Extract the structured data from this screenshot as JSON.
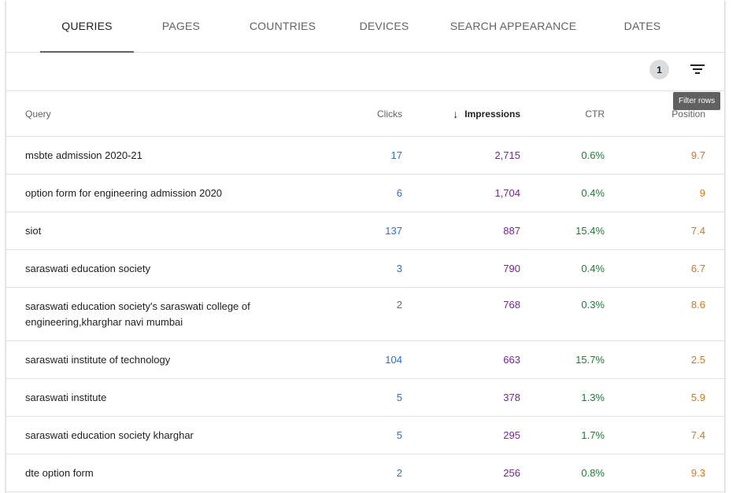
{
  "tabs": [
    {
      "label": "QUERIES",
      "active": true
    },
    {
      "label": "PAGES"
    },
    {
      "label": "COUNTRIES"
    },
    {
      "label": "DEVICES"
    },
    {
      "label": "SEARCH APPEARANCE"
    },
    {
      "label": "DATES"
    }
  ],
  "toolbar": {
    "filter_count": "1",
    "filter_icon": "filter-list-icon",
    "tooltip": "Filter rows"
  },
  "table": {
    "columns": {
      "query": "Query",
      "clicks": "Clicks",
      "impressions": "Impressions",
      "ctr": "CTR",
      "position": "Position"
    },
    "sort_icon": "arrow-down-icon",
    "colors": {
      "clicks": "#1a73e8",
      "impressions": "#7b1fa2",
      "ctr": "#188038",
      "position": "#e8710a"
    },
    "rows": [
      {
        "query": "msbte admission 2020-21",
        "clicks": "17",
        "impressions": "2,715",
        "ctr": "0.6%",
        "position": "9.7"
      },
      {
        "query": "option form for engineering admission 2020",
        "clicks": "6",
        "impressions": "1,704",
        "ctr": "0.4%",
        "position": "9"
      },
      {
        "query": "siot",
        "clicks": "137",
        "impressions": "887",
        "ctr": "15.4%",
        "position": "7.4"
      },
      {
        "query": "saraswati education society",
        "clicks": "3",
        "impressions": "790",
        "ctr": "0.4%",
        "position": "6.7"
      },
      {
        "query": "saraswati education society's saraswati college of engineering,kharghar navi mumbai",
        "clicks": "2",
        "impressions": "768",
        "ctr": "0.3%",
        "position": "8.6"
      },
      {
        "query": "saraswati institute of technology",
        "clicks": "104",
        "impressions": "663",
        "ctr": "15.7%",
        "position": "2.5"
      },
      {
        "query": "saraswati institute",
        "clicks": "5",
        "impressions": "378",
        "ctr": "1.3%",
        "position": "5.9"
      },
      {
        "query": "saraswati education society kharghar",
        "clicks": "5",
        "impressions": "295",
        "ctr": "1.7%",
        "position": "7.4"
      },
      {
        "query": "dte option form",
        "clicks": "2",
        "impressions": "256",
        "ctr": "0.8%",
        "position": "9.3"
      }
    ]
  }
}
